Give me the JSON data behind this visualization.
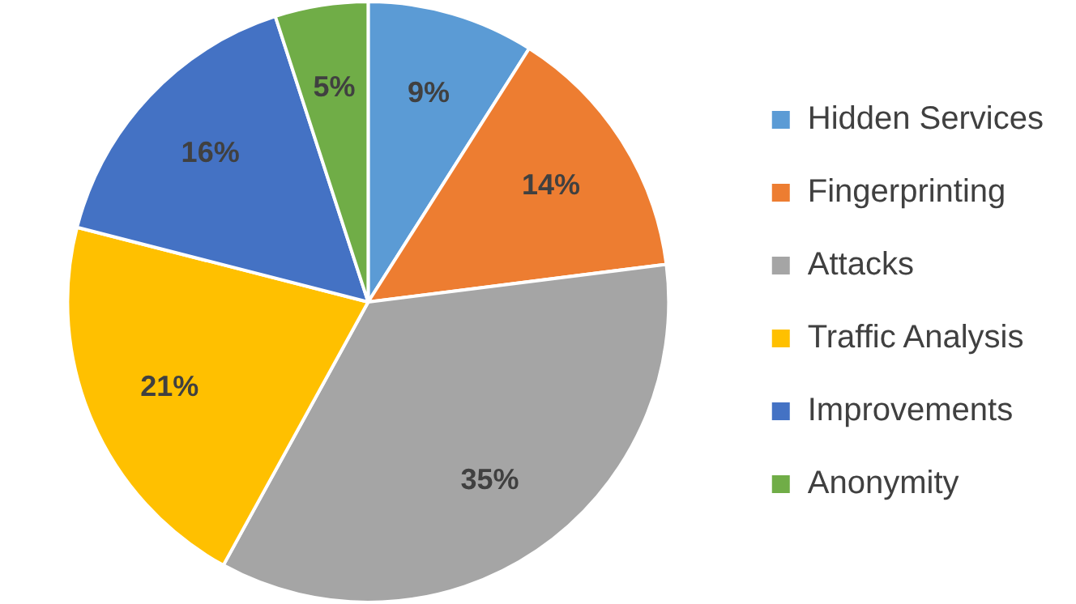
{
  "chart_data": {
    "type": "pie",
    "categories": [
      "Hidden Services",
      "Fingerprinting",
      "Attacks",
      "Traffic Analysis",
      "Improvements",
      "Anonymity"
    ],
    "values": [
      9,
      14,
      35,
      21,
      16,
      5
    ],
    "value_labels": [
      "9%",
      "14%",
      "35%",
      "21%",
      "16%",
      "5%"
    ],
    "colors": [
      "#5b9bd5",
      "#ed7d31",
      "#a5a5a5",
      "#ffc000",
      "#4472c4",
      "#70ad47"
    ],
    "legend": "right"
  }
}
